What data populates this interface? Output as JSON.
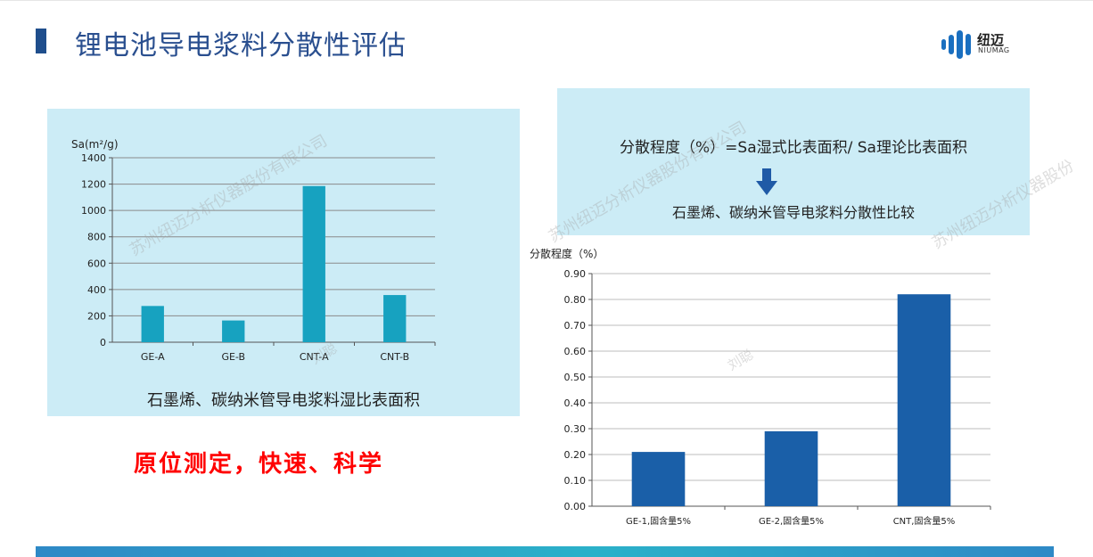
{
  "header": {
    "title": "锂电池导电浆料分散性评估"
  },
  "logo": {
    "name_cn": "纽迈",
    "name_en": "NIUMAG"
  },
  "watermarks": [
    "苏州纽迈分析仪器股份有限公司",
    "苏州纽迈分析仪器股份有限公司",
    "苏州纽迈分析仪器股份",
    "刘聪",
    "刘聪"
  ],
  "left_panel": {
    "caption": "石墨烯、碳纳米管导电浆料湿比表面积"
  },
  "slogan": "原位测定，快速、科学",
  "right_panel": {
    "formula": "分散程度（%）=Sa湿式比表面积/ Sa理论比表面积",
    "comparison": "石墨烯、碳纳米管导电浆料分散性比较"
  },
  "colors": {
    "title": "#2a4f8f",
    "panel_bg": "#ccecf6",
    "bar_left": "#17a2c0",
    "bar_right": "#1a5fa8",
    "slogan": "#ff0000"
  },
  "chart_data": [
    {
      "type": "bar",
      "ylabel": "Sa(m²/g)",
      "categories": [
        "GE-A",
        "GE-B",
        "CNT-A",
        "CNT-B"
      ],
      "values": [
        275,
        165,
        1185,
        358
      ],
      "ylim": [
        0,
        1400
      ],
      "yticks": [
        "0",
        "200",
        "400",
        "600",
        "800",
        "1000",
        "1200",
        "1400"
      ],
      "grid": true,
      "legend": "none"
    },
    {
      "type": "bar",
      "ylabel": "分散程度（%）",
      "categories": [
        "GE-1,固含量5%",
        "GE-2,固含量5%",
        "CNT,固含量5%"
      ],
      "values": [
        0.21,
        0.29,
        0.82
      ],
      "ylim": [
        0,
        0.9
      ],
      "yticks": [
        "0.00",
        "0.10",
        "0.20",
        "0.30",
        "0.40",
        "0.50",
        "0.60",
        "0.70",
        "0.80",
        "0.90"
      ],
      "grid": true,
      "legend": "none"
    }
  ]
}
